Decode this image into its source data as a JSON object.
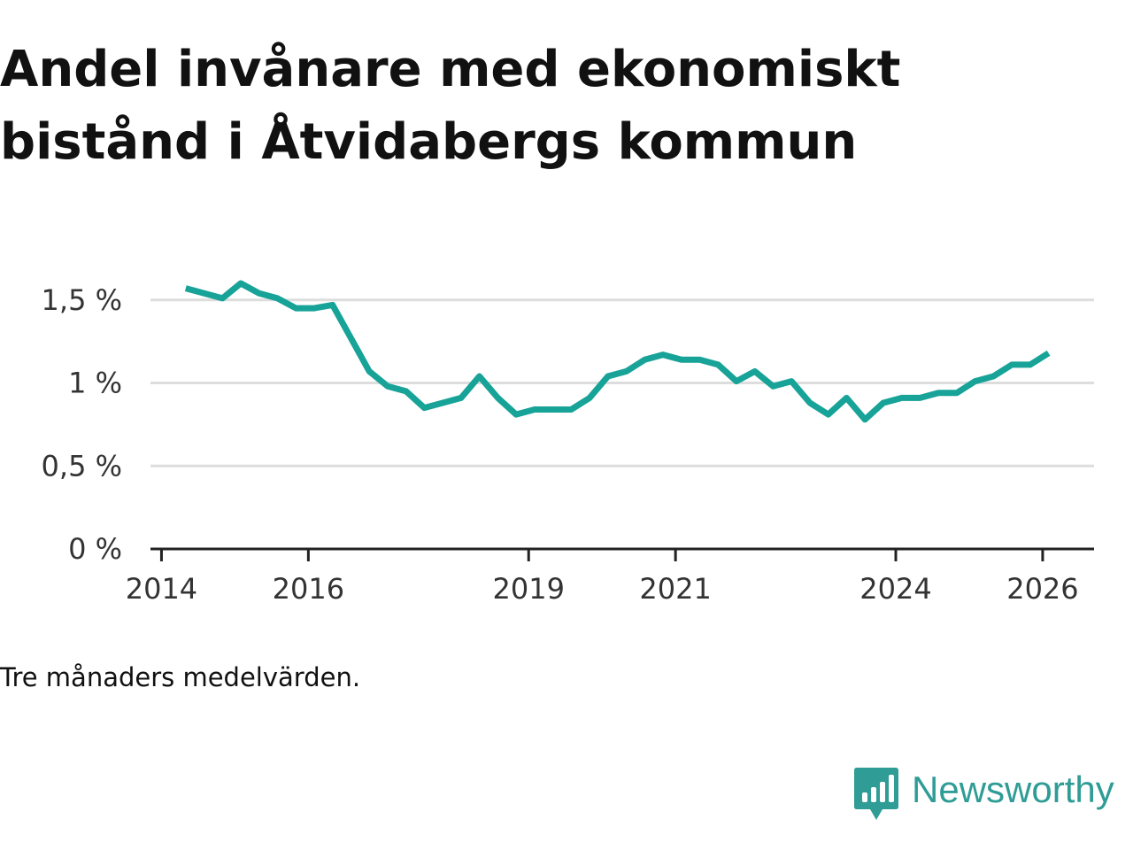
{
  "title": "Andel invånare med ekonomiskt bistånd i Åtvidabergs kommun",
  "note": "Tre månaders medelvärden.",
  "brand": {
    "name": "Newsworthy",
    "icon": "newsworthy-logo-icon"
  },
  "colors": {
    "line": "#17a398",
    "grid": "#dddddd",
    "axis": "#222222",
    "brand": "#2f9c96"
  },
  "chart_data": {
    "type": "line",
    "title": "Andel invånare med ekonomiskt bistånd i Åtvidabergs kommun",
    "xlabel": "",
    "ylabel": "",
    "ylim": [
      0,
      1.6
    ],
    "xlim": [
      2013.85,
      2026.7
    ],
    "grid": true,
    "yticks": [
      {
        "value": 0,
        "label": "0 %"
      },
      {
        "value": 0.5,
        "label": "0,5 %"
      },
      {
        "value": 1,
        "label": "1 %"
      },
      {
        "value": 1.5,
        "label": "1,5 %"
      }
    ],
    "xticks": [
      {
        "value": 2014,
        "label": "2014"
      },
      {
        "value": 2016,
        "label": "2016"
      },
      {
        "value": 2019,
        "label": "2019"
      },
      {
        "value": 2021,
        "label": "2021"
      },
      {
        "value": 2024,
        "label": "2024"
      },
      {
        "value": 2026,
        "label": "2026"
      }
    ],
    "series": [
      {
        "name": "Andel invånare med ekonomiskt bistånd",
        "x": [
          2014.33,
          2014.58,
          2014.83,
          2015.08,
          2015.33,
          2015.58,
          2015.83,
          2016.08,
          2016.33,
          2016.58,
          2016.83,
          2017.08,
          2017.33,
          2017.58,
          2017.83,
          2018.08,
          2018.33,
          2018.58,
          2018.83,
          2019.08,
          2019.33,
          2019.58,
          2019.83,
          2020.08,
          2020.33,
          2020.58,
          2020.83,
          2021.08,
          2021.33,
          2021.58,
          2021.83,
          2022.08,
          2022.33,
          2022.58,
          2022.83,
          2023.08,
          2023.33,
          2023.58,
          2023.83,
          2024.08,
          2024.33,
          2024.58,
          2024.83,
          2025.08,
          2025.33,
          2025.58,
          2025.83,
          2026.08
        ],
        "values": [
          1.57,
          1.54,
          1.51,
          1.6,
          1.54,
          1.51,
          1.45,
          1.45,
          1.47,
          1.27,
          1.07,
          0.98,
          0.95,
          0.85,
          0.88,
          0.91,
          1.04,
          0.91,
          0.81,
          0.84,
          0.84,
          0.84,
          0.91,
          1.04,
          1.07,
          1.14,
          1.17,
          1.14,
          1.14,
          1.11,
          1.01,
          1.07,
          0.98,
          1.01,
          0.88,
          0.81,
          0.91,
          0.78,
          0.88,
          0.91,
          0.91,
          0.94,
          0.94,
          1.01,
          1.04,
          1.11,
          1.11,
          1.18
        ]
      }
    ]
  }
}
